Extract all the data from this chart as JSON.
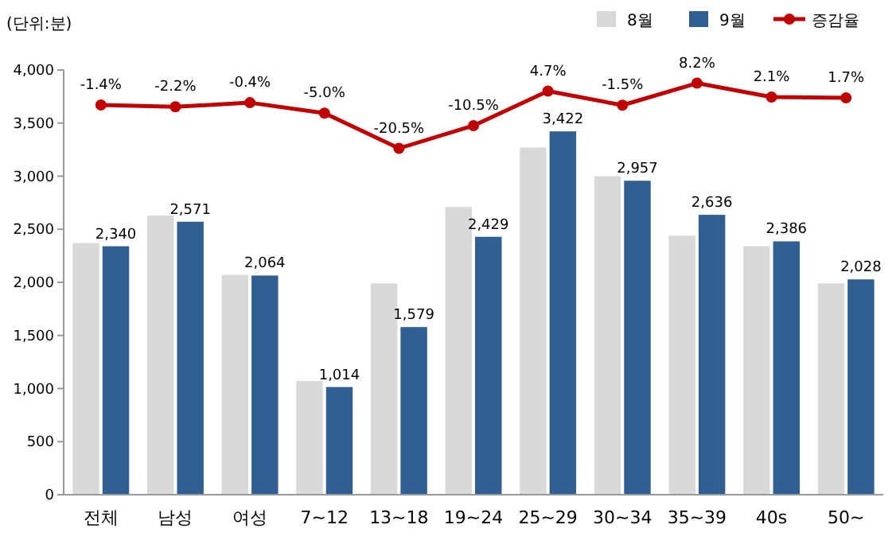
{
  "chart_data": {
    "type": "bar",
    "ylabel": "(단위:분)",
    "categories": [
      "전체",
      "남성",
      "여성",
      "7~12",
      "13~18",
      "19~24",
      "25~29",
      "30~34",
      "35~39",
      "40s",
      "50~"
    ],
    "series": [
      {
        "name": "8월",
        "color": "#d9d9d9",
        "values": [
          2370,
          2630,
          2070,
          1070,
          1990,
          2710,
          3270,
          3000,
          2440,
          2340,
          1990
        ]
      },
      {
        "name": "9월",
        "color": "#325f91",
        "values": [
          2340,
          2571,
          2064,
          1014,
          1579,
          2429,
          3422,
          2957,
          2636,
          2386,
          2028
        ],
        "value_labels": [
          "2,340",
          "2,571",
          "2,064",
          "1,014",
          "1,579",
          "2,429",
          "3,422",
          "2,957",
          "2,636",
          "2,386",
          "2,028"
        ]
      },
      {
        "name": "증감율",
        "type": "line",
        "axis": "y2",
        "color": "#c00000",
        "marker": "circle",
        "values": [
          -1.4,
          -2.2,
          -0.4,
          -5.0,
          -20.5,
          -10.5,
          4.7,
          -1.5,
          8.2,
          2.1,
          1.7
        ],
        "value_labels": [
          "-1.4%",
          "-2.2%",
          "-0.4%",
          "-5.0%",
          "-20.5%",
          "-10.5%",
          "4.7%",
          "-1.5%",
          "8.2%",
          "2.1%",
          "1.7%"
        ]
      }
    ],
    "ylim": [
      0,
      4000
    ],
    "yticks": [
      {
        "value": 0,
        "label": "0"
      },
      {
        "value": 500,
        "label": "500"
      },
      {
        "value": 1000,
        "label": "1,000"
      },
      {
        "value": 1500,
        "label": "1,500"
      },
      {
        "value": 2000,
        "label": "2,000"
      },
      {
        "value": 2500,
        "label": "2,500"
      },
      {
        "value": 3000,
        "label": "3,000"
      },
      {
        "value": 3500,
        "label": "3,500"
      },
      {
        "value": 4000,
        "label": "4,000"
      }
    ],
    "y2lim": [
      -173,
      14
    ],
    "tick_labels": "xy",
    "grid": false,
    "legend": "top right"
  }
}
